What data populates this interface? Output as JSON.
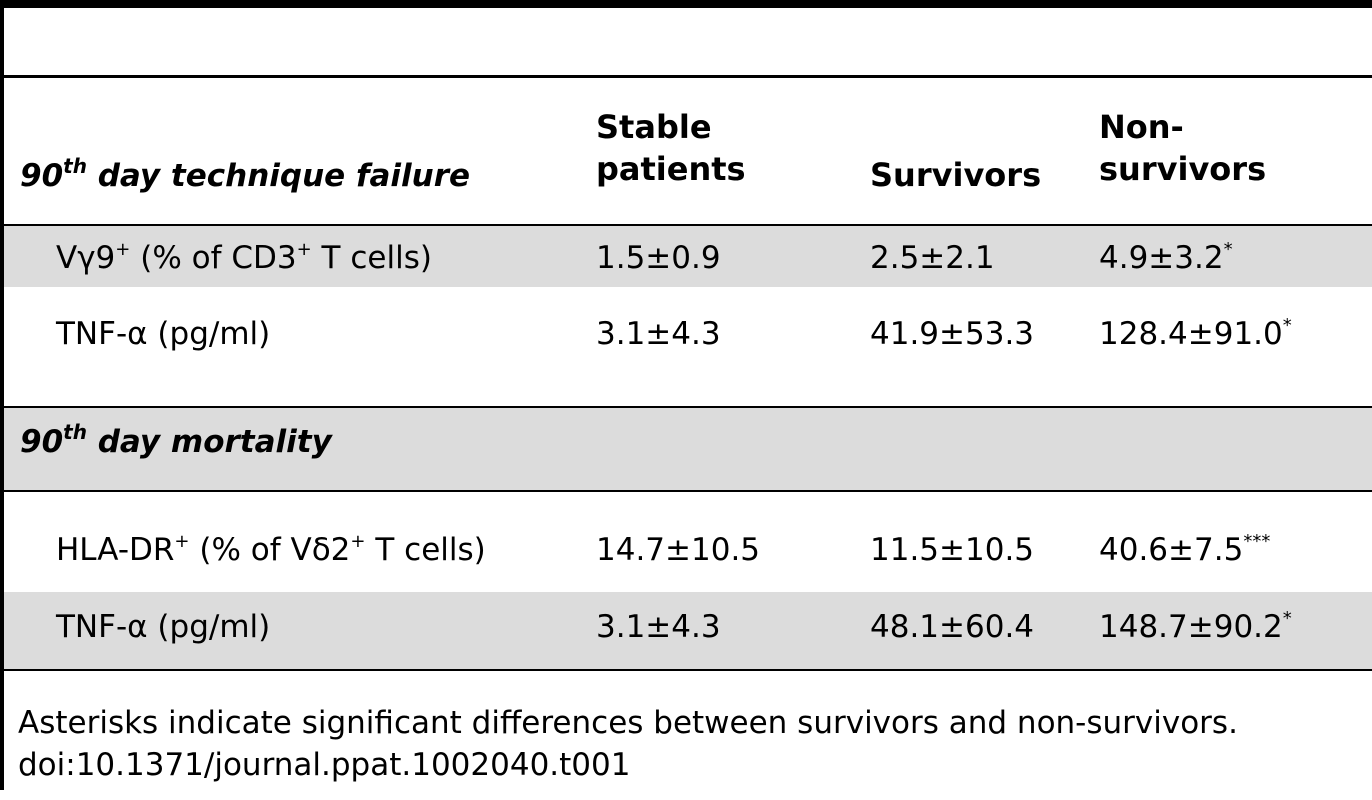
{
  "table": {
    "header": {
      "col0_main": "90",
      "col0_sup": "th",
      "col0_rest": " day technique failure",
      "col1_line1": "Stable",
      "col1_line2": "patients",
      "col2": "Survivors",
      "col3_line1": "Non-",
      "col3_line2": "survivors"
    },
    "rows1": [
      {
        "label_pre": "Vγ9",
        "label_sup": "+",
        "label_mid": " (% of CD3",
        "label_sup2": "+",
        "label_post": " T cells)",
        "stable": "1.5±0.9",
        "survivors": "2.5±2.1",
        "non_survivors": "4.9±3.2",
        "sig": "*"
      },
      {
        "label_pre": "TNF-α (pg/ml)",
        "stable": "3.1±4.3",
        "survivors": "41.9±53.3",
        "non_survivors": "128.4±91.0",
        "sig": "*"
      }
    ],
    "section2": {
      "main": "90",
      "sup": "th",
      "rest": " day mortality"
    },
    "rows2": [
      {
        "label_pre": "HLA-DR",
        "label_sup": "+",
        "label_mid": " (% of Vδ2",
        "label_sup2": "+",
        "label_post": " T cells)",
        "stable": "14.7±10.5",
        "survivors": "11.5±10.5",
        "non_survivors": "40.6±7.5",
        "sig": "***"
      },
      {
        "label_pre": "TNF-α (pg/ml)",
        "stable": "3.1±4.3",
        "survivors": "48.1±60.4",
        "non_survivors": "148.7±90.2",
        "sig": "*"
      }
    ]
  },
  "caption": {
    "note": "Asterisks indicate significant differences between survivors and non-survivors.",
    "doi": "doi:10.1371/journal.ppat.1002040.t001"
  }
}
